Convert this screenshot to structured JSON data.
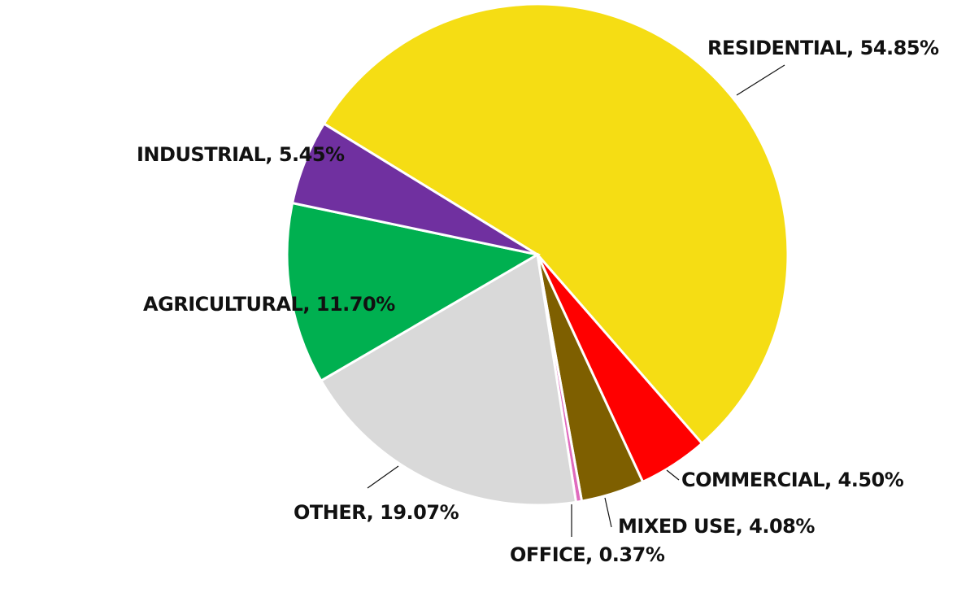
{
  "chart_data": {
    "type": "pie",
    "title": "",
    "slices": [
      {
        "name": "RESIDENTIAL",
        "value": 54.85,
        "label": "RESIDENTIAL, 54.85%",
        "color": "#F5DD14"
      },
      {
        "name": "COMMERCIAL",
        "value": 4.5,
        "label": "COMMERCIAL, 4.50%",
        "color": "#FF0000"
      },
      {
        "name": "MIXED USE",
        "value": 4.08,
        "label": "MIXED USE, 4.08%",
        "color": "#7E5F00"
      },
      {
        "name": "OFFICE",
        "value": 0.37,
        "label": "OFFICE,  0.37%",
        "color": "#E06BBE"
      },
      {
        "name": "OTHER",
        "value": 19.07,
        "label": "OTHER, 19.07%",
        "color": "#D9D9D9"
      },
      {
        "name": "AGRICULTURAL",
        "value": 11.7,
        "label": "AGRICULTURAL, 11.70%",
        "color": "#00B050"
      },
      {
        "name": "INDUSTRIAL",
        "value": 5.45,
        "label": "INDUSTRIAL, 5.45%",
        "color": "#7030A0"
      }
    ],
    "legend": "none",
    "data_labels": "outside"
  }
}
